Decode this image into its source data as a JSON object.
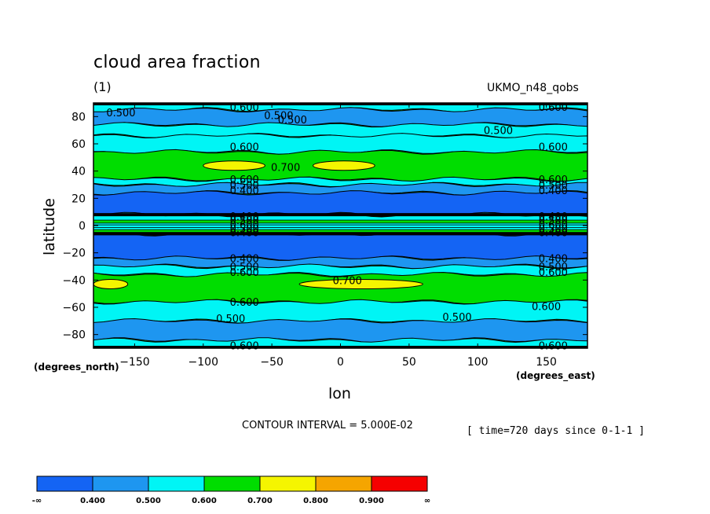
{
  "header": {
    "title": "cloud area fraction",
    "subtitle": "(1)",
    "dataset": "UKMO_n48_qobs"
  },
  "footer": {
    "contour_interval": "CONTOUR INTERVAL = 5.000E-02",
    "time_info": "[ time=720 days since 0-1-1 ]"
  },
  "colorbar": {
    "colors": [
      "#1464f4",
      "#1e96f0",
      "#00f5f5",
      "#00dd00",
      "#f5f500",
      "#f5a500",
      "#f50000"
    ],
    "labels": [
      "-∞",
      "0.400",
      "0.500",
      "0.600",
      "0.700",
      "0.800",
      "0.900",
      "∞"
    ]
  },
  "chart_data": {
    "type": "heatmap",
    "title": "cloud area fraction",
    "subtitle": "(1)",
    "xlabel": "lon",
    "ylabel": "latitude",
    "x_units": "(degrees_east)",
    "y_units": "(degrees_north)",
    "xlim": [
      -180,
      180
    ],
    "ylim": [
      -90,
      90
    ],
    "x_ticks": [
      -150,
      -100,
      -50,
      0,
      50,
      100,
      150
    ],
    "x_tick_labels": [
      "−150",
      "−100",
      "−50",
      "0",
      "50",
      "100",
      "150"
    ],
    "y_ticks": [
      80,
      60,
      40,
      20,
      0,
      -20,
      -40,
      -60,
      -80
    ],
    "y_tick_labels": [
      "80",
      "60",
      "40",
      "20",
      "0",
      "−20",
      "−40",
      "−60",
      "−80"
    ],
    "contour_levels": [
      0.4,
      0.5,
      0.6,
      0.7,
      0.8,
      0.9
    ],
    "bands": [
      {
        "lat_min": 85,
        "lat_max": 90,
        "value_range": "0.500-0.600"
      },
      {
        "lat_min": 74,
        "lat_max": 85,
        "value_range": "0.400-0.500"
      },
      {
        "lat_min": 66,
        "lat_max": 74,
        "value_range": "0.500-0.600"
      },
      {
        "lat_min": 54,
        "lat_max": 66,
        "value_range": "0.500-0.600"
      },
      {
        "lat_min": 34,
        "lat_max": 54,
        "value_range": "0.600-0.700"
      },
      {
        "lat_min": 30,
        "lat_max": 34,
        "value_range": "0.500-0.600"
      },
      {
        "lat_min": 24,
        "lat_max": 30,
        "value_range": "0.400-0.500"
      },
      {
        "lat_min": 8,
        "lat_max": 24,
        "value_range": "<0.400"
      },
      {
        "lat_min": -6,
        "lat_max": 8,
        "value_range": "0.400-0.700"
      },
      {
        "lat_min": -24,
        "lat_max": -6,
        "value_range": "<0.400"
      },
      {
        "lat_min": -30,
        "lat_max": -24,
        "value_range": "0.400-0.500"
      },
      {
        "lat_min": -36,
        "lat_max": -30,
        "value_range": "0.500-0.600"
      },
      {
        "lat_min": -56,
        "lat_max": -36,
        "value_range": "0.600-0.700"
      },
      {
        "lat_min": -70,
        "lat_max": -56,
        "value_range": "0.500-0.600"
      },
      {
        "lat_min": -84,
        "lat_max": -70,
        "value_range": "0.400-0.500"
      },
      {
        "lat_min": -90,
        "lat_max": -84,
        "value_range": "0.500-0.600"
      }
    ],
    "maxima_regions": [
      {
        "value_range": "0.700-0.800",
        "lat": 44,
        "lon_from": -100,
        "lon_to": -55
      },
      {
        "value_range": "0.700-0.800",
        "lat": 44,
        "lon_from": -20,
        "lon_to": 25
      },
      {
        "value_range": "0.700-0.800",
        "lat": -43,
        "lon_from": -30,
        "lon_to": 60
      },
      {
        "value_range": "0.700-0.800",
        "lat": -43,
        "lon_from": -180,
        "lon_to": -155
      }
    ],
    "contour_labels": [
      {
        "text": "0.500",
        "lon": -160,
        "lat": 83
      },
      {
        "text": "0.600",
        "lon": -70,
        "lat": 87
      },
      {
        "text": "0.500",
        "lon": -45,
        "lat": 81
      },
      {
        "text": "0.500",
        "lon": -35,
        "lat": 78
      },
      {
        "text": "0.600",
        "lon": 155,
        "lat": 87
      },
      {
        "text": "0.500",
        "lon": 115,
        "lat": 70
      },
      {
        "text": "0.600",
        "lon": -70,
        "lat": 58
      },
      {
        "text": "0.600",
        "lon": 155,
        "lat": 58
      },
      {
        "text": "0.700",
        "lon": -40,
        "lat": 43
      },
      {
        "text": "0.600",
        "lon": -70,
        "lat": 34
      },
      {
        "text": "0.500",
        "lon": -70,
        "lat": 30
      },
      {
        "text": "0.400",
        "lon": -70,
        "lat": 26
      },
      {
        "text": "0.600",
        "lon": 155,
        "lat": 34
      },
      {
        "text": "0.500",
        "lon": 155,
        "lat": 30
      },
      {
        "text": "0.400",
        "lon": 155,
        "lat": 26
      },
      {
        "text": "0.400",
        "lon": -70,
        "lat": 7
      },
      {
        "text": "0.500",
        "lon": -70,
        "lat": 4
      },
      {
        "text": "0.600",
        "lon": -70,
        "lat": 1
      },
      {
        "text": "0.500",
        "lon": -70,
        "lat": -2
      },
      {
        "text": "0.400",
        "lon": -70,
        "lat": -5
      },
      {
        "text": "0.400",
        "lon": 155,
        "lat": 7
      },
      {
        "text": "0.500",
        "lon": 155,
        "lat": 4
      },
      {
        "text": "0.600",
        "lon": 155,
        "lat": 1
      },
      {
        "text": "0.500",
        "lon": 155,
        "lat": -2
      },
      {
        "text": "0.400",
        "lon": 155,
        "lat": -5
      },
      {
        "text": "0.400",
        "lon": -70,
        "lat": -24
      },
      {
        "text": "0.500",
        "lon": -70,
        "lat": -30
      },
      {
        "text": "0.600",
        "lon": -70,
        "lat": -34
      },
      {
        "text": "0.400",
        "lon": 155,
        "lat": -24
      },
      {
        "text": "0.500",
        "lon": 155,
        "lat": -30
      },
      {
        "text": "0.600",
        "lon": 155,
        "lat": -34
      },
      {
        "text": "0.700",
        "lon": 5,
        "lat": -40
      },
      {
        "text": "0.600",
        "lon": -70,
        "lat": -56
      },
      {
        "text": "0.600",
        "lon": 150,
        "lat": -59
      },
      {
        "text": "0.500",
        "lon": -80,
        "lat": -68
      },
      {
        "text": "0.500",
        "lon": 85,
        "lat": -67
      },
      {
        "text": "0.600",
        "lon": -70,
        "lat": -88
      },
      {
        "text": "0.600",
        "lon": 155,
        "lat": -88
      }
    ]
  }
}
